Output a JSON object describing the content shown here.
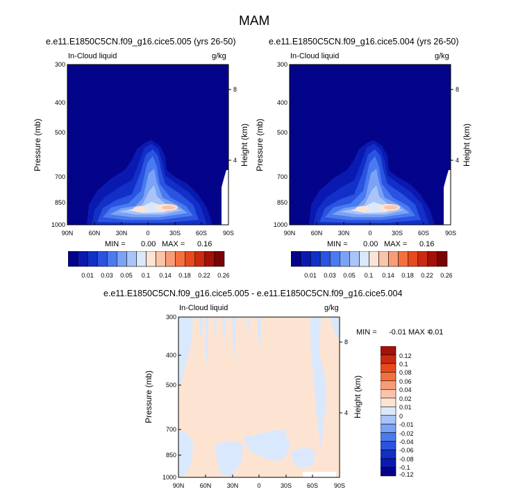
{
  "page_title": "MAM",
  "colors": {
    "abs_levels": [
      "#04048a",
      "#0a1ab0",
      "#1230c8",
      "#2a53e0",
      "#4a7af0",
      "#7aa2f5",
      "#a8c4f8",
      "#d9e8fc",
      "#fde4d2",
      "#fbc4a8",
      "#f89c78",
      "#f5703f",
      "#e84a1c",
      "#cb2a10",
      "#a51008",
      "#7a0404"
    ],
    "diff_levels": [
      "#04048a",
      "#0a1ab0",
      "#1230c8",
      "#2a53e0",
      "#4a7af0",
      "#7aa2f5",
      "#a8c4f8",
      "#d9e8fc",
      "#fde4d2",
      "#fbc4a8",
      "#f89c78",
      "#f5703f",
      "#e84a1c",
      "#cb2a10",
      "#a51008"
    ]
  },
  "chart_data": [
    {
      "type": "heatmap",
      "title": "e.e11.E1850C5CN.f09_g16.cice5.005 (yrs 26-50)",
      "left_label": "In-Cloud liquid",
      "right_label": "g/kg",
      "ylabel": "Pressure (mb)",
      "y2label": "Height (km)",
      "x_ticks": [
        "90N",
        "60N",
        "30N",
        "0",
        "30S",
        "60S",
        "90S"
      ],
      "y_ticks": [
        "300",
        "400",
        "500",
        "700",
        "850",
        "1000"
      ],
      "y2_ticks": [
        "8",
        "4"
      ],
      "min_label": "MIN =",
      "min_value": "0.00",
      "max_label": "MAX =",
      "max_value": "0.16",
      "colorbar_labels": [
        "0.01",
        "0.03",
        "0.05",
        "0.1",
        "0.14",
        "0.18",
        "0.22",
        "0.26"
      ]
    },
    {
      "type": "heatmap",
      "title": "e.e11.E1850C5CN.f09_g16.cice5.004 (yrs 26-50)",
      "left_label": "In-Cloud liquid",
      "right_label": "g/kg",
      "ylabel": "Pressure (mb)",
      "y2label": "Height (km)",
      "x_ticks": [
        "90N",
        "60N",
        "30N",
        "0",
        "30S",
        "60S",
        "90S"
      ],
      "y_ticks": [
        "300",
        "400",
        "500",
        "700",
        "850",
        "1000"
      ],
      "y2_ticks": [
        "8",
        "4"
      ],
      "min_label": "MIN =",
      "min_value": "0.00",
      "max_label": "MAX =",
      "max_value": "0.16",
      "colorbar_labels": [
        "0.01",
        "0.03",
        "0.05",
        "0.1",
        "0.14",
        "0.18",
        "0.22",
        "0.26"
      ]
    },
    {
      "type": "heatmap",
      "title": "e.e11.E1850C5CN.f09_g16.cice5.005 - e.e11.E1850C5CN.f09_g16.cice5.004",
      "left_label": "In-Cloud liquid",
      "right_label": "g/kg",
      "ylabel": "Pressure (mb)",
      "y2label": "Height (km)",
      "x_ticks": [
        "90N",
        "60N",
        "30N",
        "0",
        "30S",
        "60S",
        "90S"
      ],
      "y_ticks": [
        "300",
        "400",
        "500",
        "700",
        "850",
        "1000"
      ],
      "y2_ticks": [
        "8",
        "4"
      ],
      "min_label": "MIN =",
      "min_value": "-0.01",
      "max_label": "MAX =",
      "max_value": "0.01",
      "colorbar_labels": [
        "0.12",
        "0.1",
        "0.08",
        "0.06",
        "0.04",
        "0.02",
        "0.01",
        "0",
        "-0.01",
        "-0.02",
        "-0.04",
        "-0.06",
        "-0.08",
        "-0.1",
        "-0.12"
      ]
    }
  ]
}
